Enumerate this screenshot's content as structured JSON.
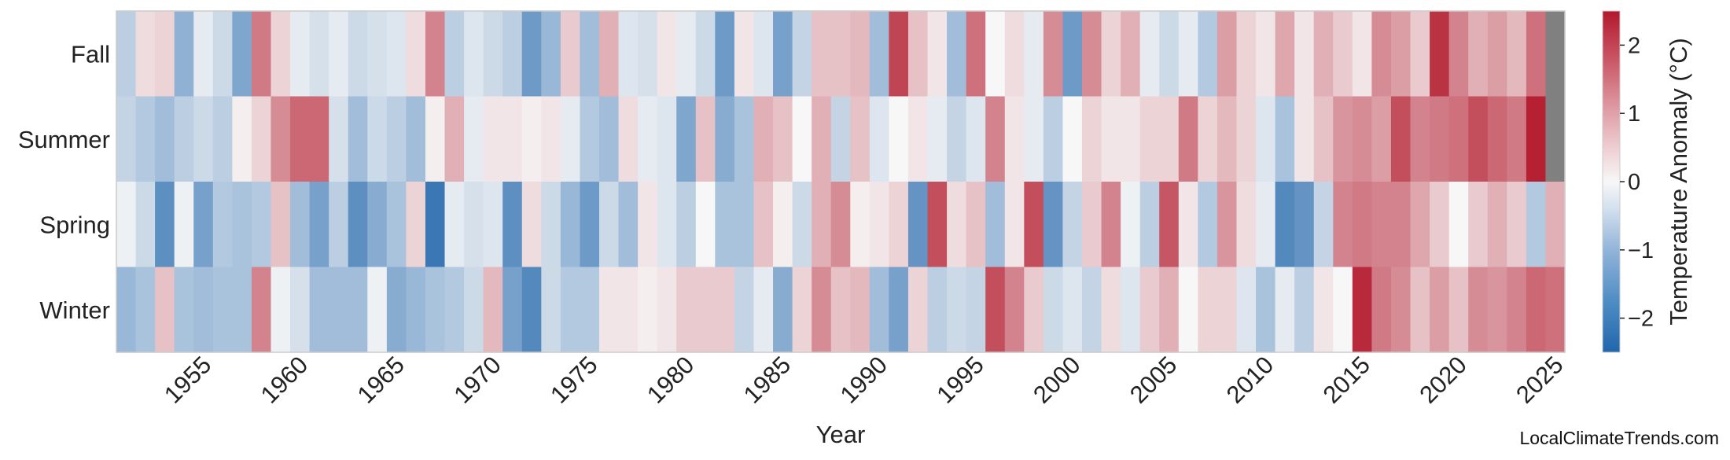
{
  "chart_data": {
    "type": "heatmap",
    "title": "",
    "xlabel": "Year",
    "colorbar_label": "Temperature Anomaly (°C)",
    "rows": [
      "Fall",
      "Summer",
      "Spring",
      "Winter"
    ],
    "x_start": 1951,
    "x_end": 2025,
    "x_ticks": [
      1955,
      1960,
      1965,
      1970,
      1975,
      1980,
      1985,
      1990,
      1995,
      2000,
      2005,
      2010,
      2015,
      2020,
      2025
    ],
    "color_range": [
      -2.5,
      2.5
    ],
    "colorbar_ticks": [
      2,
      1,
      0,
      -1,
      -2
    ],
    "colormap": [
      "#2166ac",
      "#f7f7f7",
      "#b2182b"
    ],
    "missing_color": "#808080",
    "grid": false,
    "values": {
      "Fall": [
        -0.7,
        0.3,
        0.4,
        -1.2,
        -0.2,
        -0.5,
        -1.4,
        1.4,
        0.4,
        -0.2,
        -0.4,
        -0.2,
        -0.5,
        -0.4,
        -0.3,
        0.3,
        1.3,
        -0.7,
        -0.3,
        -0.5,
        -0.7,
        -1.6,
        -1.1,
        0.5,
        -1.0,
        0.8,
        -0.3,
        -0.4,
        0.2,
        -0.2,
        -0.5,
        -1.6,
        0.2,
        -0.3,
        -1.5,
        -0.6,
        0.6,
        0.6,
        0.7,
        -1.0,
        2.0,
        0.6,
        0.2,
        -1.0,
        1.5,
        0.0,
        0.3,
        -0.2,
        1.2,
        -1.6,
        1.2,
        0.4,
        0.8,
        -0.2,
        -0.5,
        -0.2,
        -0.8,
        1.0,
        0.4,
        0.2,
        0.9,
        0.2,
        0.8,
        0.5,
        0.2,
        1.2,
        1.0,
        0.5,
        2.2,
        1.3,
        0.8,
        1.0,
        0.7,
        1.5,
        null
      ],
      "Summer": [
        -0.6,
        -0.8,
        -1.0,
        -0.7,
        -0.5,
        -0.7,
        0.1,
        0.4,
        1.2,
        1.6,
        1.6,
        -0.4,
        -1.0,
        -0.5,
        -0.7,
        -1.0,
        0.1,
        0.8,
        -0.2,
        0.2,
        0.2,
        0.1,
        0.2,
        -0.2,
        -0.8,
        -1.0,
        0.3,
        -0.2,
        -0.3,
        -1.4,
        0.6,
        -1.3,
        -0.9,
        0.8,
        0.6,
        0.0,
        0.8,
        -0.6,
        0.6,
        -0.3,
        0.0,
        0.2,
        -0.2,
        -0.6,
        -0.3,
        1.3,
        0.2,
        -0.2,
        -0.7,
        0.0,
        0.4,
        0.2,
        0.2,
        0.4,
        0.4,
        1.4,
        0.4,
        0.7,
        0.4,
        -0.3,
        -0.9,
        0.2,
        0.6,
        1.1,
        1.2,
        1.0,
        1.9,
        1.3,
        1.4,
        1.5,
        1.9,
        1.6,
        1.4,
        2.4,
        null
      ],
      "Spring": [
        -0.1,
        -0.5,
        -1.8,
        -0.1,
        -1.5,
        -0.8,
        -0.9,
        -0.8,
        0.6,
        -1.0,
        -1.5,
        -0.7,
        -1.8,
        -1.3,
        -0.9,
        0.4,
        -2.2,
        -0.2,
        -0.4,
        -0.3,
        -1.8,
        0.3,
        -0.5,
        -1.1,
        -1.6,
        -0.5,
        -1.0,
        0.2,
        -0.3,
        -0.7,
        0.0,
        -0.9,
        -0.9,
        0.6,
        0.1,
        -0.5,
        0.8,
        1.2,
        0.1,
        0.2,
        0.4,
        -1.7,
        1.9,
        0.3,
        0.6,
        -1.0,
        0.2,
        1.9,
        -1.7,
        -0.6,
        0.5,
        1.3,
        -0.1,
        -0.7,
        1.8,
        0.2,
        -0.8,
        1.1,
        0.3,
        -0.2,
        -1.9,
        -1.7,
        -0.6,
        1.3,
        1.4,
        1.3,
        1.3,
        0.9,
        0.5,
        0.0,
        0.5,
        0.8,
        0.5,
        -0.8,
        0.8
      ],
      "Winter": [
        -1.1,
        -0.9,
        0.6,
        -0.9,
        -1.0,
        -0.9,
        -0.9,
        1.3,
        -0.1,
        -0.4,
        -1.0,
        -1.0,
        -1.0,
        -0.1,
        -1.3,
        -1.1,
        -0.9,
        -0.8,
        -0.5,
        0.7,
        -1.5,
        -1.9,
        -0.5,
        -0.8,
        -0.8,
        0.2,
        0.2,
        0.1,
        0.2,
        0.5,
        0.5,
        0.5,
        -0.6,
        -0.2,
        -1.3,
        0.4,
        1.2,
        0.6,
        0.7,
        -1.0,
        -1.5,
        0.4,
        -0.7,
        -0.5,
        -0.6,
        1.9,
        1.3,
        0.5,
        -0.5,
        -0.3,
        -0.6,
        0.3,
        -0.3,
        0.5,
        0.8,
        0.0,
        0.4,
        0.4,
        -0.3,
        -0.9,
        -0.2,
        -0.7,
        0.2,
        0.0,
        2.3,
        1.4,
        1.2,
        0.6,
        1.0,
        0.6,
        1.2,
        1.1,
        1.3,
        1.6,
        1.5
      ]
    }
  },
  "footer": {
    "source": "LocalClimateTrends.com"
  }
}
